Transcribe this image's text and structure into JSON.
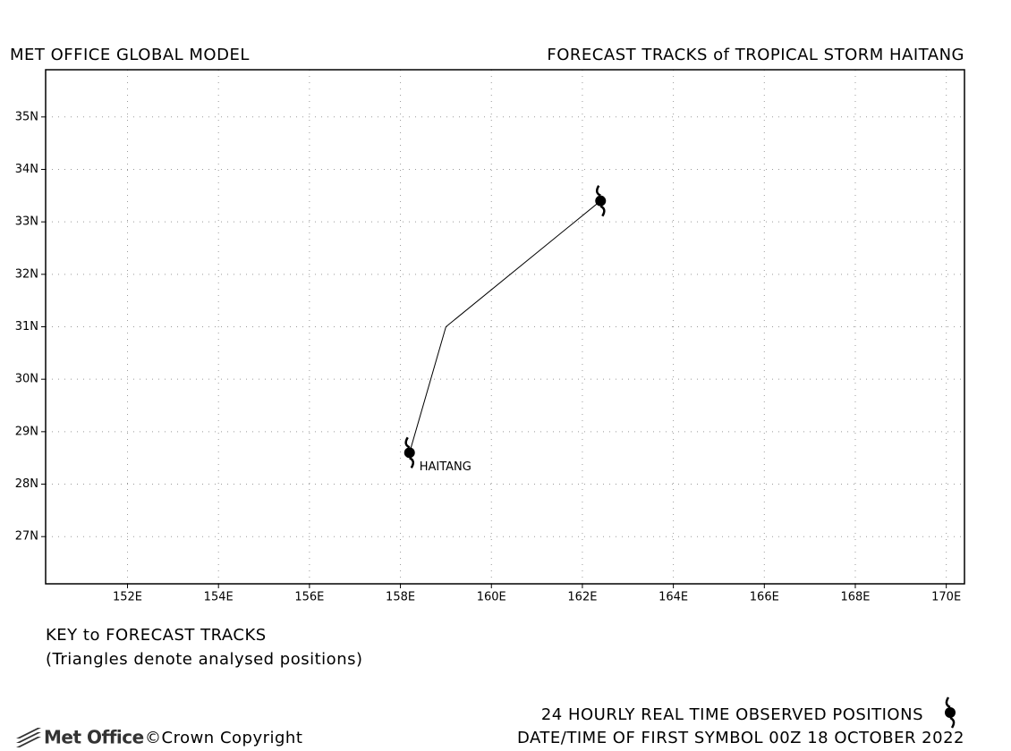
{
  "chart_data": {
    "type": "line",
    "title": "MET OFFICE GLOBAL MODEL",
    "subtitle": "FORECAST TRACKS of TROPICAL STORM HAITANG",
    "key_title": "KEY to FORECAST TRACKS",
    "key_note": "(Triangles denote analysed positions)",
    "observed_note": "24 HOURLY REAL TIME OBSERVED POSITIONS",
    "date_note": "DATE/TIME OF FIRST SYMBOL 00Z 18 OCTOBER 2022",
    "logo": "Met Office",
    "copyright": "©Crown Copyright",
    "x": [
      158.2,
      159.0,
      162.4
    ],
    "series": [
      {
        "name": "HAITANG",
        "color": "#000000",
        "values": [
          28.6,
          31.0,
          33.4
        ]
      }
    ],
    "xlim": [
      150.2,
      170.4
    ],
    "ylim": [
      26.1,
      35.9
    ],
    "xticks": [
      {
        "value": 152,
        "label": "152E"
      },
      {
        "value": 154,
        "label": "154E"
      },
      {
        "value": 156,
        "label": "156E"
      },
      {
        "value": 158,
        "label": "158E"
      },
      {
        "value": 160,
        "label": "160E"
      },
      {
        "value": 162,
        "label": "162E"
      },
      {
        "value": 164,
        "label": "164E"
      },
      {
        "value": 166,
        "label": "166E"
      },
      {
        "value": 168,
        "label": "168E"
      },
      {
        "value": 170,
        "label": "170E"
      }
    ],
    "yticks": [
      {
        "value": 27,
        "label": "27N"
      },
      {
        "value": 28,
        "label": "28N"
      },
      {
        "value": 29,
        "label": "29N"
      },
      {
        "value": 30,
        "label": "30N"
      },
      {
        "value": 31,
        "label": "31N"
      },
      {
        "value": 32,
        "label": "32N"
      },
      {
        "value": 33,
        "label": "33N"
      },
      {
        "value": 34,
        "label": "34N"
      },
      {
        "value": 35,
        "label": "35N"
      }
    ],
    "grid": true
  }
}
